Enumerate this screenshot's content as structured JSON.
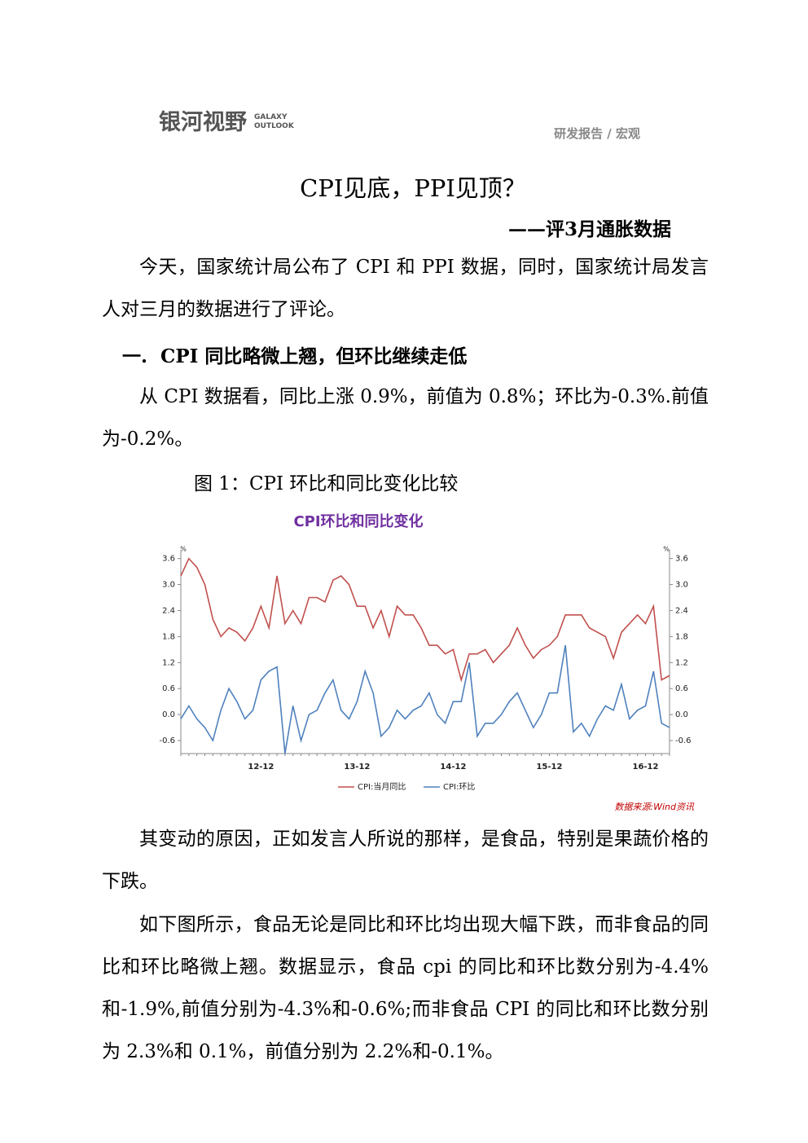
{
  "header": {
    "brand": "银河视野",
    "brand_en": [
      "GALAXY",
      "OUTLOOK"
    ],
    "category": "研发报告 / 宏观"
  },
  "title": "CPI见底，PPI见顶？",
  "subtitle": "——评3月通胀数据",
  "paragraphs": [
    "今天，国家统计局公布了 CPI 和 PPI 数据，同时，国家统计局发言人对三月的数据进行了评论。",
    "从 CPI 数据看，同比上涨 0.9%，前值为 0.8%；环比为-0.3%.前值为-0.2%。",
    "其变动的原因，正如发言人所说的那样，是食品，特别是果蔬价格的下跌。",
    "如下图所示，食品无论是同比和环比均出现大幅下跌，而非食品的同比和环比略微上翘。数据显示，食品 cpi 的同比和环比数分别为-4.4%和-1.9%,前值分别为-4.3%和-0.6%;而非食品 CPI 的同比和环比数分别为 2.3%和 0.1%，前值分别为 2.2%和-0.1%。"
  ],
  "section": "一.  CPI 同比略微上翘，但环比继续走低",
  "figure_caption": "图 1：CPI 环比和同比变化比较",
  "source": "数据来源:Wind资讯",
  "chart_data": {
    "type": "line",
    "title": "CPI环比和同比变化",
    "y_unit": "%",
    "y2_unit": "%",
    "categories": [
      null,
      null,
      null,
      null,
      null,
      null,
      null,
      null,
      null,
      null,
      "12-12",
      null,
      null,
      null,
      null,
      null,
      null,
      null,
      null,
      null,
      null,
      null,
      "13-12",
      null,
      null,
      null,
      null,
      null,
      null,
      null,
      null,
      null,
      null,
      null,
      "14-12",
      null,
      null,
      null,
      null,
      null,
      null,
      null,
      null,
      null,
      null,
      null,
      "15-12",
      null,
      null,
      null,
      null,
      null,
      null,
      null,
      null,
      null,
      null,
      null,
      "16-12",
      null,
      null,
      null
    ],
    "series": [
      {
        "name": "CPI:当月同比",
        "color": "#c0504d",
        "values": [
          3.2,
          3.6,
          3.4,
          3.0,
          2.2,
          1.8,
          2.0,
          1.9,
          1.7,
          2.0,
          2.5,
          2.0,
          3.2,
          2.1,
          2.4,
          2.1,
          2.7,
          2.7,
          2.6,
          3.1,
          3.2,
          3.0,
          2.5,
          2.5,
          2.0,
          2.4,
          1.8,
          2.5,
          2.3,
          2.3,
          2.0,
          1.6,
          1.6,
          1.4,
          1.5,
          0.8,
          1.4,
          1.4,
          1.5,
          1.2,
          1.4,
          1.6,
          2.0,
          1.6,
          1.3,
          1.5,
          1.6,
          1.8,
          2.3,
          2.3,
          2.3,
          2.0,
          1.9,
          1.8,
          1.3,
          1.9,
          2.1,
          2.3,
          2.1,
          2.5,
          0.8,
          0.9
        ]
      },
      {
        "name": "CPI:环比",
        "color": "#4f81bd",
        "axis": "y2",
        "values": [
          -0.1,
          0.2,
          -0.1,
          -0.3,
          -0.6,
          0.1,
          0.6,
          0.3,
          -0.1,
          0.1,
          0.8,
          1.0,
          1.1,
          -0.9,
          0.2,
          -0.6,
          0.0,
          0.1,
          0.5,
          0.8,
          0.1,
          -0.1,
          0.3,
          1.0,
          0.5,
          -0.5,
          -0.3,
          0.1,
          -0.1,
          0.1,
          0.2,
          0.5,
          0.0,
          -0.2,
          0.3,
          0.3,
          1.2,
          -0.5,
          -0.2,
          -0.2,
          0.0,
          0.3,
          0.5,
          0.1,
          -0.3,
          0.0,
          0.5,
          0.5,
          1.6,
          -0.4,
          -0.2,
          -0.5,
          -0.1,
          0.2,
          0.1,
          0.7,
          -0.1,
          0.1,
          0.2,
          1.0,
          -0.2,
          -0.3
        ]
      }
    ],
    "ylim": [
      -0.9,
      3.8
    ],
    "yticks": [
      -0.6,
      {
        "value": 0,
        "label": "0.0"
      },
      0.6,
      1.2,
      1.8,
      2.4,
      {
        "value": 3,
        "label": "3.0"
      },
      3.6
    ],
    "y2lim": [
      -0.9,
      3.8
    ],
    "y2ticks": [
      -0.6,
      {
        "value": 0,
        "label": "0.0"
      },
      0.6,
      1.2,
      1.8,
      2.4,
      {
        "value": 3,
        "label": "3.0"
      },
      3.6
    ],
    "grid": false
  }
}
